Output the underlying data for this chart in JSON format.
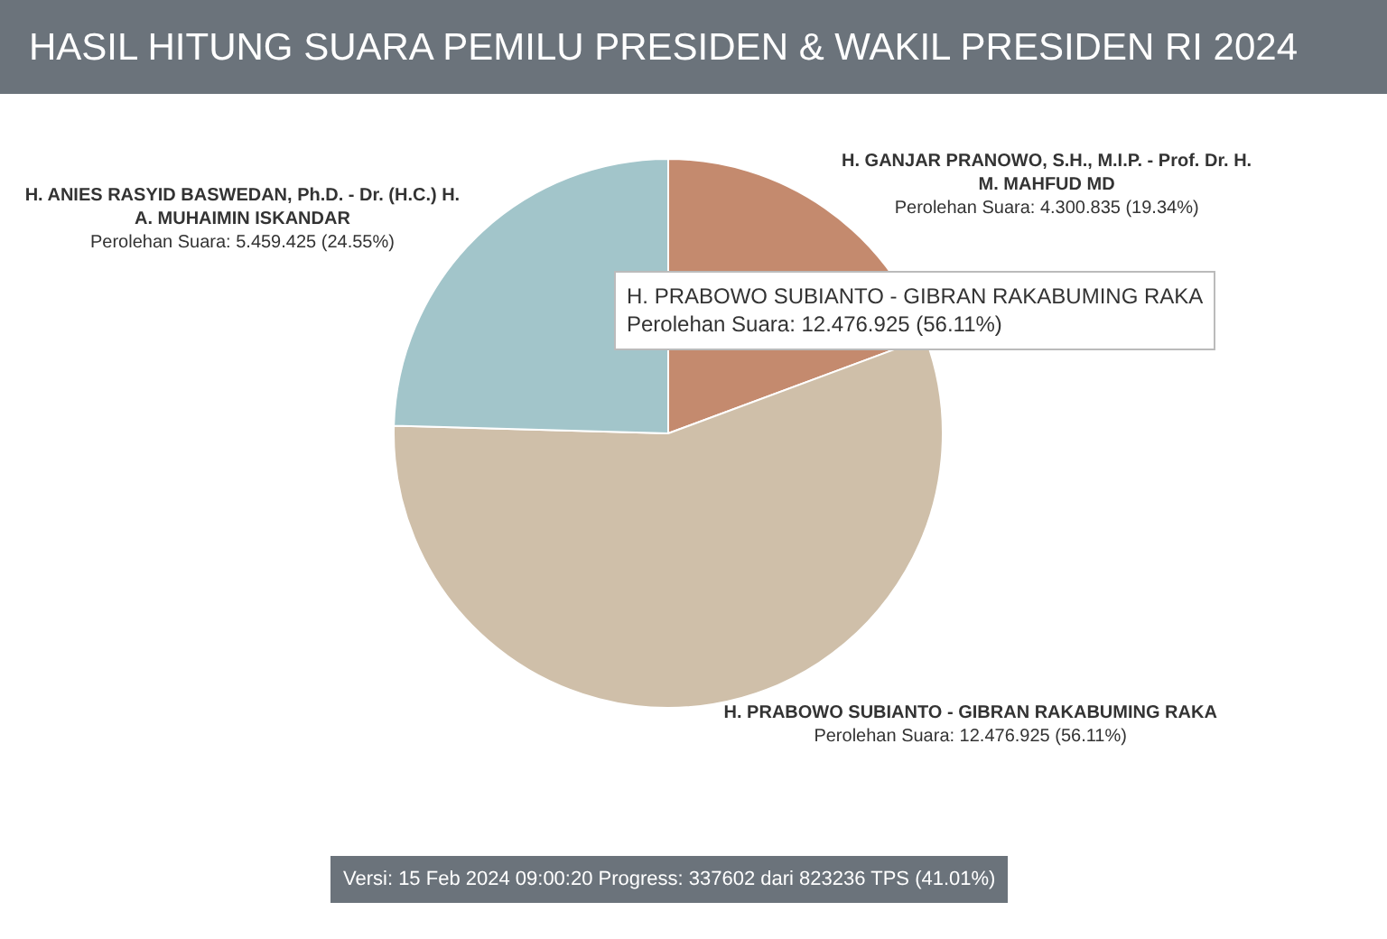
{
  "chart_data": {
    "type": "pie",
    "title": "HASIL HITUNG SUARA PEMILU PRESIDEN & WAKIL PRESIDEN RI 2024",
    "categories": [
      "H. GANJAR PRANOWO, S.H., M.I.P. - Prof. Dr. H. M. MAHFUD MD",
      "H. PRABOWO SUBIANTO - GIBRAN RAKABUMING RAKA",
      "H. ANIES RASYID BASWEDAN, Ph.D. - Dr. (H.C.) H. A. MUHAIMIN ISKANDAR"
    ],
    "values": [
      4300835,
      12476925,
      5459425
    ],
    "value_labels": [
      "Perolehan Suara: 4.300.835 (19.34%)",
      "Perolehan Suara: 12.476.925 (56.11%)",
      "Perolehan Suara: 5.459.425 (24.55%)"
    ],
    "colors": [
      "#c48a6e",
      "#cfbfa9",
      "#a2c5ca"
    ],
    "annotations": [
      "H. PRABOWO SUBIANTO - GIBRAN RAKABUMING RAKA\nPerolehan Suara: 12.476.925 (56.11%)",
      "Versi: 15 Feb 2024 09:00:20 Progress: 337602 dari 823236 TPS (41.01%)"
    ],
    "legend": false
  }
}
